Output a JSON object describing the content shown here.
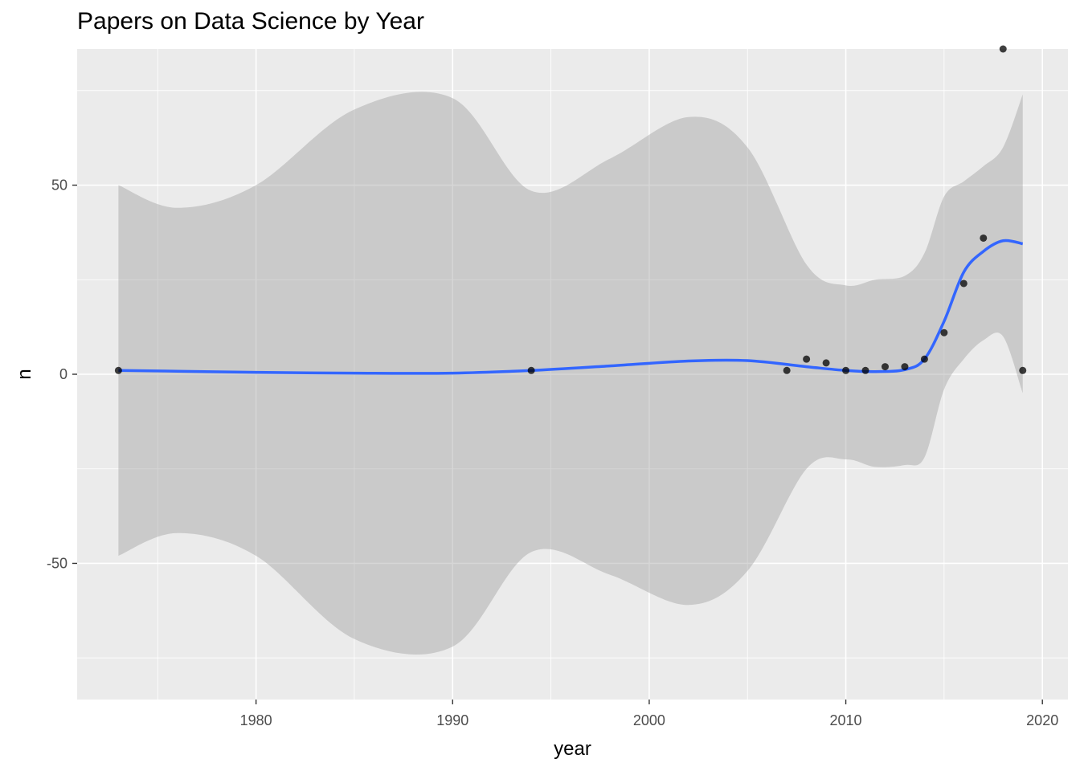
{
  "chart_data": {
    "type": "scatter",
    "title": "Papers on Data Science by Year",
    "xlabel": "year",
    "ylabel": "n",
    "xlim": [
      1970.9,
      2021.3
    ],
    "ylim": [
      -86,
      86
    ],
    "x_ticks": [
      1980,
      1990,
      2000,
      2010,
      2020
    ],
    "x_tick_labels": [
      "1980",
      "1990",
      "2000",
      "2010",
      "2020"
    ],
    "y_ticks": [
      -50,
      0,
      50
    ],
    "y_tick_labels": [
      "-50",
      "0",
      "50"
    ],
    "grid": true,
    "legend": "none",
    "colors": {
      "panel": "#ebebeb",
      "grid": "#ffffff",
      "points": "#000000",
      "smooth_line": "#3366ff",
      "ribbon": "#999999"
    },
    "points": {
      "x": [
        1973,
        1994,
        2007,
        2008,
        2009,
        2010,
        2011,
        2012,
        2013,
        2014,
        2015,
        2016,
        2017,
        2018,
        2019
      ],
      "y": [
        1,
        1,
        1,
        4,
        3,
        1,
        1,
        2,
        2,
        4,
        11,
        24,
        36,
        86,
        1
      ]
    },
    "smooth": {
      "x": [
        1973,
        1976,
        1980,
        1985,
        1990,
        1994,
        1998,
        2002,
        2005,
        2008,
        2010,
        2011.5,
        2013,
        2014,
        2015,
        2016,
        2017,
        2018,
        2019
      ],
      "y": [
        1.0,
        0.8,
        0.5,
        0.3,
        0.3,
        1.0,
        2.2,
        3.5,
        3.6,
        2.0,
        1.0,
        0.7,
        1.2,
        4.0,
        14.0,
        27.0,
        32.5,
        35.3,
        34.5
      ],
      "lower": [
        -48,
        -42,
        -48,
        -70,
        -72,
        -47,
        -53,
        -61,
        -52,
        -25,
        -22.5,
        -24.5,
        -24,
        -22,
        -4,
        4,
        9,
        10,
        -5
      ],
      "upper": [
        50,
        44,
        50,
        70,
        73,
        48.5,
        57,
        68,
        60,
        29,
        23.5,
        25,
        26,
        32,
        47,
        51,
        55,
        60,
        74
      ]
    }
  }
}
